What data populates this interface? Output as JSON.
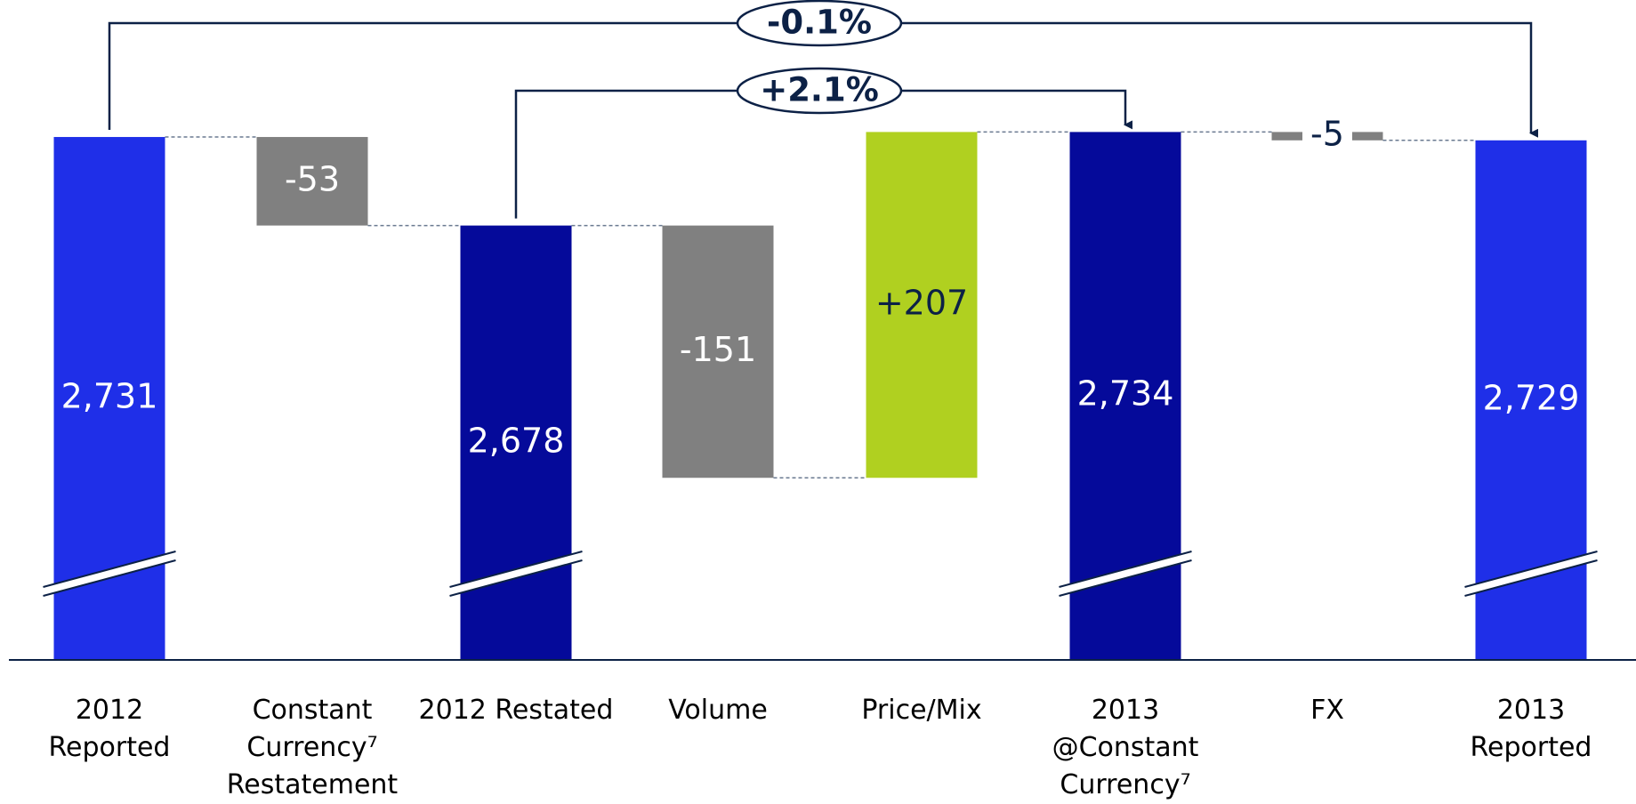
{
  "chart_data": {
    "type": "waterfall",
    "categories": [
      "2012 Reported",
      "Constant Currency⁷ Restatement",
      "2012 Restated",
      "Volume",
      "Price/Mix",
      "2013 @Constant Currency⁷",
      "FX",
      "2013 Reported"
    ],
    "values": [
      2731,
      -53,
      2678,
      -151,
      207,
      2734,
      -5,
      2729
    ],
    "value_labels": [
      "2,731",
      "-53",
      "2,678",
      "-151",
      "+207",
      "2,734",
      "-5",
      "2,729"
    ],
    "totals": [
      true,
      false,
      true,
      false,
      false,
      true,
      false,
      true
    ],
    "colors": [
      "#1f2fe8",
      "#808080",
      "#050a9a",
      "#808080",
      "#b0d020",
      "#050a9a",
      "#808080",
      "#1f2fe8"
    ],
    "label_colors": [
      "#ffffff",
      "#ffffff",
      "#ffffff",
      "#ffffff",
      "#0c2146",
      "#ffffff",
      "#0c2146",
      "#ffffff"
    ],
    "ylim": [
      2418,
      2813
    ],
    "annotations": [
      "-0.1%",
      "+2.1%"
    ]
  }
}
